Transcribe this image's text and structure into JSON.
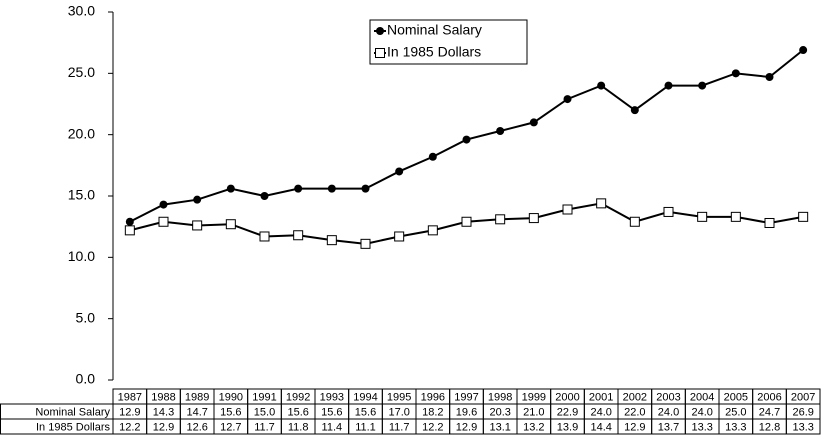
{
  "chart_data": {
    "type": "line",
    "categories": [
      "1987",
      "1988",
      "1989",
      "1990",
      "1991",
      "1992",
      "1993",
      "1994",
      "1995",
      "1996",
      "1997",
      "1998",
      "1999",
      "2000",
      "2001",
      "2002",
      "2003",
      "2004",
      "2005",
      "2006",
      "2007"
    ],
    "series": [
      {
        "name": "Nominal Salary",
        "color": "#000000",
        "marker": "circle",
        "values": [
          12.9,
          14.3,
          14.7,
          15.6,
          15.0,
          15.6,
          15.6,
          15.6,
          17.0,
          18.2,
          19.6,
          20.3,
          21.0,
          22.9,
          24.0,
          22.0,
          24.0,
          24.0,
          25.0,
          24.7,
          26.9
        ],
        "value_labels": [
          "12.9",
          "14.3",
          "14.7",
          "15.6",
          "15.0",
          "15.6",
          "15.6",
          "15.6",
          "17.0",
          "18.2",
          "19.6",
          "20.3",
          "21.0",
          "22.9",
          "24.0",
          "22.0",
          "24.0",
          "24.0",
          "25.0",
          "24.7",
          "26.9"
        ]
      },
      {
        "name": "In 1985 Dollars",
        "color": "#000000",
        "marker": "square",
        "values": [
          12.2,
          12.9,
          12.6,
          12.7,
          11.7,
          11.8,
          11.4,
          11.1,
          11.7,
          12.2,
          12.9,
          13.1,
          13.2,
          13.9,
          14.4,
          12.9,
          13.7,
          13.3,
          13.3,
          12.8,
          13.3
        ],
        "value_labels": [
          "12.2",
          "12.9",
          "12.6",
          "12.7",
          "11.7",
          "11.8",
          "11.4",
          "11.1",
          "11.7",
          "12.2",
          "12.9",
          "13.1",
          "13.2",
          "13.9",
          "14.4",
          "12.9",
          "13.7",
          "13.3",
          "13.3",
          "12.8",
          "13.3"
        ]
      }
    ],
    "ylim": [
      0,
      30
    ],
    "yticks": [
      {
        "value": 0,
        "label": "0.0"
      },
      {
        "value": 5,
        "label": "5.0"
      },
      {
        "value": 10,
        "label": "10.0"
      },
      {
        "value": 15,
        "label": "15.0"
      },
      {
        "value": 20,
        "label": "20.0"
      },
      {
        "value": 25,
        "label": "25.0"
      },
      {
        "value": 30,
        "label": "30.0"
      }
    ],
    "legend": "upper center",
    "grid": false
  }
}
